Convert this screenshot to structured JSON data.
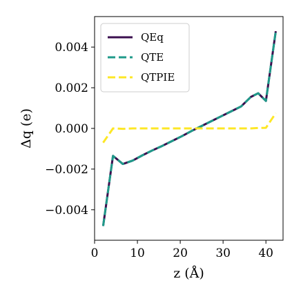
{
  "chart_data": {
    "type": "line",
    "xlabel": "z (Å)",
    "ylabel": "Δq (e)",
    "xlim": [
      0,
      44
    ],
    "ylim": [
      -0.0055,
      0.0055
    ],
    "xticks": [
      0,
      10,
      20,
      30,
      40
    ],
    "xtick_labels": [
      "0",
      "10",
      "20",
      "30",
      "40"
    ],
    "yticks": [
      -0.004,
      -0.002,
      0.0,
      0.002,
      0.004
    ],
    "ytick_labels": [
      "−0.004",
      "−0.002",
      "0.000",
      "0.002",
      "0.004"
    ],
    "grid": false,
    "legend_position": "upper-left",
    "series": [
      {
        "name": "QEq",
        "color": "#3b0f4f",
        "style": "solid",
        "x": [
          2.0,
          4.3,
          6.6,
          8.9,
          11.2,
          13.5,
          15.8,
          18.1,
          20.4,
          22.7,
          25.0,
          27.3,
          29.6,
          31.9,
          34.2,
          36.5,
          38.2,
          40.0,
          42.3
        ],
        "y": [
          -0.0048,
          -0.00135,
          -0.00175,
          -0.00158,
          -0.00132,
          -0.00108,
          -0.00086,
          -0.00062,
          -0.00038,
          -0.00012,
          0.00012,
          0.00036,
          0.0006,
          0.00084,
          0.00108,
          0.00155,
          0.00173,
          0.00135,
          0.00478
        ]
      },
      {
        "name": "QTE",
        "color": "#1f9a8a",
        "style": "dashed",
        "x": [
          2.0,
          4.3,
          6.6,
          8.9,
          11.2,
          13.5,
          15.8,
          18.1,
          20.4,
          22.7,
          25.0,
          27.3,
          29.6,
          31.9,
          34.2,
          36.5,
          38.2,
          40.0,
          42.3
        ],
        "y": [
          -0.0048,
          -0.00135,
          -0.00175,
          -0.00158,
          -0.00132,
          -0.00108,
          -0.00086,
          -0.00062,
          -0.00038,
          -0.00012,
          0.00012,
          0.00036,
          0.0006,
          0.00084,
          0.00108,
          0.00155,
          0.00173,
          0.00135,
          0.00478
        ]
      },
      {
        "name": "QTPIE",
        "color": "#fde725",
        "style": "dashed",
        "x": [
          2.0,
          4.3,
          6.6,
          8.9,
          11.2,
          13.5,
          15.8,
          18.1,
          20.4,
          22.7,
          25.0,
          27.3,
          29.6,
          31.9,
          34.2,
          36.5,
          38.2,
          40.0,
          42.3
        ],
        "y": [
          -0.0007,
          0.0,
          -2e-05,
          0.0,
          0.0,
          0.0,
          0.0,
          0.0,
          0.0,
          0.0,
          0.0,
          0.0,
          0.0,
          0.0,
          0.0,
          0.0,
          2e-05,
          3e-05,
          0.00075
        ]
      }
    ]
  }
}
